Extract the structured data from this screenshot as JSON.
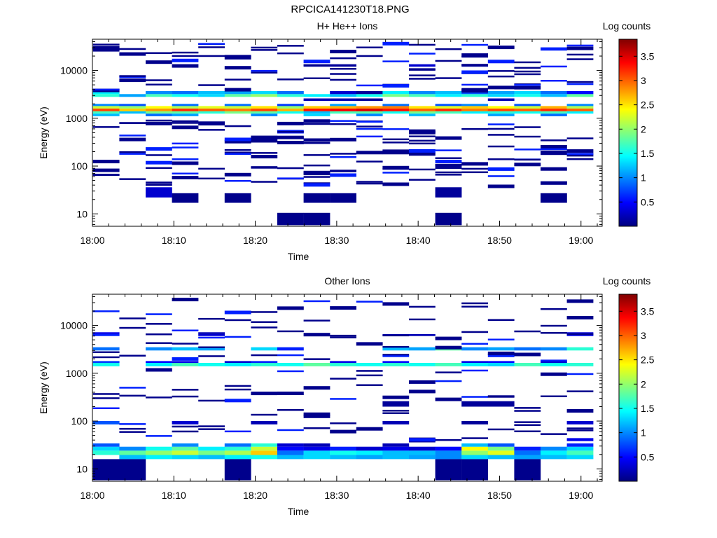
{
  "figure": {
    "title": "RPCICA141230T18.PNG"
  },
  "colors": {
    "colormap": [
      "#00007f",
      "#0000ff",
      "#007fff",
      "#00ffff",
      "#7fff7f",
      "#ffff00",
      "#ff7f00",
      "#ff0000",
      "#7f0000"
    ]
  },
  "chart_data": [
    {
      "type": "heatmap",
      "title": "H+ He++ Ions",
      "xlabel": "Time",
      "ylabel": "Energy (eV)",
      "y_scale": "log",
      "ylim": [
        5.5,
        45000
      ],
      "xlim": [
        "18:00",
        "19:02.6"
      ],
      "x_ticks": [
        "18:00",
        "18:10",
        "18:20",
        "18:30",
        "18:40",
        "18:50",
        "19:00"
      ],
      "y_ticks": [
        10,
        100,
        1000,
        10000
      ],
      "y_tick_labels": [
        "10",
        "100",
        "1000",
        "10000"
      ],
      "colorbar": {
        "label": "Log counts",
        "min": 0,
        "max": 3.85,
        "ticks": [
          0.5,
          1,
          1.5,
          2,
          2.5,
          3,
          3.5
        ],
        "tick_labels": [
          "0.5",
          "1",
          "1.5",
          "2",
          "2.5",
          "3",
          "3.5"
        ]
      },
      "time_bins": [
        "18:03",
        "18:06",
        "18:09",
        "18:12",
        "18:16",
        "18:19",
        "18:22",
        "18:26",
        "18:29",
        "18:32",
        "18:35",
        "18:38",
        "18:42",
        "18:45",
        "18:48",
        "18:51",
        "18:54",
        "18:58",
        "19:01"
      ],
      "cells": [
        [
          0,
          10,
          1.7
        ],
        [
          1,
          10,
          1.2
        ],
        [
          2,
          10,
          1.9
        ],
        [
          3,
          10,
          1.8
        ],
        [
          4,
          10,
          1.6
        ],
        [
          5,
          10,
          1.9
        ],
        [
          6,
          10,
          1.8
        ],
        [
          7,
          10,
          1.5
        ],
        [
          8,
          10,
          1.2
        ],
        [
          9,
          10,
          1.7
        ],
        [
          10,
          10,
          1.8
        ],
        [
          11,
          10,
          1.5
        ],
        [
          12,
          10,
          1.9
        ],
        [
          13,
          10,
          1.7
        ],
        [
          14,
          10,
          1.4
        ],
        [
          15,
          10,
          1.6
        ],
        [
          16,
          10,
          1.5
        ],
        [
          17,
          10,
          1.7
        ],
        [
          18,
          10,
          1.4
        ],
        [
          0,
          11,
          3.1
        ],
        [
          1,
          11,
          2.6
        ],
        [
          2,
          11,
          2.8
        ],
        [
          3,
          11,
          3.2
        ],
        [
          4,
          11,
          3.0
        ],
        [
          5,
          11,
          2.9
        ],
        [
          6,
          11,
          3.1
        ],
        [
          7,
          11,
          2.7
        ],
        [
          8,
          11,
          3.3
        ],
        [
          9,
          11,
          3.4
        ],
        [
          10,
          11,
          3.5
        ],
        [
          11,
          11,
          3.3
        ],
        [
          12,
          11,
          3.0
        ],
        [
          13,
          11,
          3.2
        ],
        [
          14,
          11,
          2.9
        ],
        [
          15,
          11,
          3.1
        ],
        [
          16,
          11,
          3.0
        ],
        [
          17,
          11,
          3.2
        ],
        [
          18,
          11,
          3.0
        ],
        [
          0,
          12,
          2.2
        ],
        [
          1,
          12,
          2.0
        ],
        [
          2,
          12,
          2.4
        ],
        [
          3,
          12,
          2.1
        ],
        [
          4,
          12,
          2.3
        ],
        [
          5,
          12,
          2.2
        ],
        [
          6,
          12,
          2.5
        ],
        [
          7,
          12,
          2.0
        ],
        [
          8,
          12,
          2.6
        ],
        [
          9,
          12,
          2.7
        ],
        [
          10,
          12,
          2.8
        ],
        [
          11,
          12,
          2.9
        ],
        [
          12,
          12,
          2.5
        ],
        [
          13,
          12,
          2.3
        ],
        [
          14,
          12,
          2.6
        ],
        [
          15,
          12,
          2.4
        ],
        [
          16,
          12,
          2.2
        ],
        [
          17,
          12,
          2.7
        ],
        [
          18,
          12,
          2.1
        ],
        [
          0,
          9,
          1.2
        ],
        [
          2,
          9,
          0.9
        ],
        [
          3,
          9,
          1.1
        ],
        [
          6,
          9,
          1.0
        ],
        [
          8,
          9,
          1.3
        ],
        [
          10,
          9,
          1.0
        ],
        [
          12,
          9,
          1.2
        ],
        [
          15,
          9,
          1.1
        ],
        [
          17,
          9,
          0.9
        ],
        [
          0,
          13,
          1.0
        ],
        [
          1,
          13,
          0.8
        ],
        [
          3,
          13,
          0.9
        ],
        [
          5,
          13,
          0.9
        ],
        [
          7,
          13,
          0.7
        ],
        [
          9,
          13,
          1.1
        ],
        [
          11,
          13,
          0.9
        ],
        [
          13,
          13,
          0.8
        ],
        [
          14,
          13,
          1.0
        ],
        [
          16,
          13,
          0.8
        ],
        [
          18,
          13,
          1.0
        ],
        [
          0,
          15,
          1.6
        ],
        [
          1,
          15,
          1.1
        ],
        [
          2,
          15,
          1.7
        ],
        [
          3,
          15,
          1.5
        ],
        [
          4,
          15,
          1.3
        ],
        [
          5,
          15,
          1.8
        ],
        [
          6,
          15,
          2.0
        ],
        [
          7,
          15,
          1.6
        ],
        [
          8,
          15,
          1.4
        ],
        [
          9,
          15,
          1.2
        ],
        [
          10,
          15,
          1.5
        ],
        [
          11,
          15,
          1.9
        ],
        [
          12,
          15,
          1.7
        ],
        [
          13,
          15,
          1.4
        ],
        [
          14,
          15,
          1.6
        ],
        [
          15,
          15,
          1.3
        ],
        [
          16,
          15,
          1.5
        ],
        [
          17,
          15,
          1.2
        ],
        [
          18,
          15,
          1.8
        ],
        [
          0,
          16,
          1.4
        ],
        [
          2,
          16,
          1.0
        ],
        [
          3,
          16,
          0.9
        ],
        [
          4,
          16,
          1.2
        ],
        [
          5,
          16,
          1.1
        ],
        [
          6,
          16,
          1.3
        ],
        [
          7,
          16,
          0.9
        ],
        [
          9,
          16,
          0.3
        ],
        [
          10,
          16,
          0.1
        ],
        [
          11,
          16,
          1.4
        ],
        [
          12,
          16,
          1.0
        ],
        [
          13,
          16,
          1.2
        ],
        [
          14,
          16,
          0.8
        ],
        [
          15,
          16,
          1.1
        ],
        [
          16,
          16,
          1.3
        ],
        [
          17,
          16,
          0.9
        ],
        [
          18,
          16,
          0.5
        ],
        [
          8,
          14,
          0.2
        ],
        [
          9,
          14,
          0.2
        ],
        [
          10,
          14,
          0.1
        ],
        [
          15,
          14,
          0.2
        ],
        [
          8,
          17,
          0.1
        ],
        [
          9,
          17,
          0.1
        ],
        [
          12,
          17,
          0.3
        ],
        [
          14,
          17,
          0.1
        ],
        [
          7,
          0,
          0.05
        ],
        [
          8,
          0,
          0.05
        ],
        [
          13,
          0,
          0.05
        ],
        [
          8,
          1,
          0.05
        ],
        [
          17,
          1,
          0.05
        ],
        [
          3,
          1,
          0.05
        ],
        [
          5,
          1,
          0.05
        ],
        [
          9,
          1,
          0.05
        ],
        [
          2,
          2,
          0.3
        ],
        [
          13,
          2,
          0.1
        ]
      ],
      "noise_seed": 7
    },
    {
      "type": "heatmap",
      "title": "Other Ions",
      "xlabel": "Time",
      "ylabel": "Energy (eV)",
      "y_scale": "log",
      "ylim": [
        5.5,
        45000
      ],
      "xlim": [
        "18:00",
        "19:02.6"
      ],
      "x_ticks": [
        "18:00",
        "18:10",
        "18:20",
        "18:30",
        "18:40",
        "18:50",
        "19:00"
      ],
      "y_ticks": [
        10,
        100,
        1000,
        10000
      ],
      "y_tick_labels": [
        "10",
        "100",
        "1000",
        "10000"
      ],
      "colorbar": {
        "label": "Log counts",
        "min": 0,
        "max": 3.85,
        "ticks": [
          0.5,
          1,
          1.5,
          2,
          2.5,
          3,
          3.5
        ],
        "tick_labels": [
          "0.5",
          "1",
          "1.5",
          "2",
          "2.5",
          "3",
          "3.5"
        ]
      },
      "time_bins": [
        "18:03",
        "18:06",
        "18:09",
        "18:12",
        "18:16",
        "18:19",
        "18:22",
        "18:26",
        "18:29",
        "18:32",
        "18:35",
        "18:38",
        "18:42",
        "18:45",
        "18:48",
        "18:51",
        "18:54",
        "18:58",
        "19:01"
      ],
      "cells": [
        [
          0,
          2,
          1.6
        ],
        [
          1,
          2,
          1.8
        ],
        [
          2,
          2,
          2.0
        ],
        [
          3,
          2,
          2.2
        ],
        [
          4,
          2,
          1.9
        ],
        [
          5,
          2,
          2.1
        ],
        [
          6,
          2,
          2.6
        ],
        [
          7,
          2,
          0.9
        ],
        [
          8,
          2,
          1.3
        ],
        [
          9,
          2,
          1.5
        ],
        [
          10,
          2,
          1.4
        ],
        [
          11,
          2,
          1.2
        ],
        [
          12,
          2,
          1.2
        ],
        [
          13,
          2,
          1.0
        ],
        [
          14,
          2,
          2.0
        ],
        [
          15,
          2,
          2.3
        ],
        [
          16,
          2,
          0.9
        ],
        [
          17,
          2,
          1.4
        ],
        [
          18,
          2,
          1.7
        ],
        [
          0,
          3,
          1.3
        ],
        [
          1,
          3,
          1.0
        ],
        [
          2,
          3,
          1.5
        ],
        [
          3,
          3,
          1.8
        ],
        [
          4,
          3,
          1.4
        ],
        [
          5,
          3,
          1.6
        ],
        [
          6,
          3,
          2.2
        ],
        [
          7,
          3,
          0.5
        ],
        [
          8,
          3,
          0.4
        ],
        [
          9,
          3,
          0.6
        ],
        [
          10,
          3,
          0.3
        ],
        [
          11,
          3,
          0.4
        ],
        [
          12,
          3,
          0.3
        ],
        [
          13,
          3,
          0.5
        ],
        [
          14,
          3,
          2.4
        ],
        [
          15,
          3,
          1.9
        ],
        [
          16,
          3,
          0.6
        ],
        [
          17,
          3,
          1.0
        ],
        [
          18,
          3,
          1.3
        ],
        [
          0,
          4,
          0.8
        ],
        [
          3,
          4,
          1.0
        ],
        [
          5,
          4,
          0.9
        ],
        [
          6,
          4,
          1.6
        ],
        [
          7,
          4,
          0.3
        ],
        [
          8,
          4,
          0.2
        ],
        [
          11,
          4,
          0.2
        ],
        [
          14,
          4,
          1.2
        ],
        [
          15,
          4,
          0.8
        ],
        [
          18,
          4,
          0.6
        ],
        [
          1,
          1,
          1.2
        ],
        [
          2,
          1,
          1.4
        ],
        [
          3,
          1,
          1.3
        ],
        [
          4,
          1,
          1.2
        ],
        [
          5,
          1,
          1.4
        ],
        [
          6,
          1,
          1.5
        ],
        [
          7,
          1,
          1.2
        ],
        [
          8,
          1,
          1.3
        ],
        [
          9,
          1,
          1.2
        ],
        [
          10,
          1,
          1.1
        ],
        [
          11,
          1,
          1.2
        ],
        [
          12,
          1,
          1.1
        ],
        [
          13,
          1,
          1.0
        ],
        [
          14,
          1,
          1.3
        ],
        [
          15,
          1,
          1.2
        ],
        [
          16,
          1,
          1.1
        ],
        [
          17,
          1,
          1.2
        ],
        [
          18,
          1,
          1.3
        ],
        [
          0,
          0,
          0.05
        ],
        [
          1,
          0,
          0.05
        ],
        [
          5,
          0,
          0.05
        ],
        [
          13,
          0,
          0.05
        ],
        [
          14,
          0,
          0.05
        ],
        [
          16,
          0,
          0.05
        ],
        [
          0,
          11,
          1.5
        ],
        [
          2,
          11,
          1.4
        ],
        [
          3,
          11,
          1.7
        ],
        [
          4,
          11,
          1.5
        ],
        [
          5,
          11,
          1.4
        ],
        [
          6,
          11,
          1.6
        ],
        [
          7,
          11,
          1.5
        ],
        [
          8,
          11,
          1.8
        ],
        [
          9,
          11,
          1.6
        ],
        [
          10,
          11,
          1.5
        ],
        [
          11,
          11,
          1.6
        ],
        [
          12,
          11,
          1.5
        ],
        [
          13,
          11,
          1.7
        ],
        [
          14,
          11,
          1.4
        ],
        [
          15,
          11,
          1.3
        ],
        [
          16,
          11,
          1.7
        ],
        [
          17,
          11,
          1.5
        ],
        [
          18,
          11,
          1.6
        ],
        [
          0,
          12,
          0.7
        ],
        [
          2,
          12,
          0.5
        ],
        [
          3,
          12,
          0.4
        ],
        [
          5,
          12,
          0.3
        ],
        [
          6,
          12,
          0.6
        ],
        [
          9,
          12,
          0.4
        ],
        [
          11,
          12,
          0.5
        ],
        [
          14,
          12,
          0.4
        ],
        [
          15,
          12,
          0.5
        ],
        [
          17,
          12,
          0.3
        ],
        [
          0,
          13,
          0.9
        ],
        [
          2,
          13,
          1.0
        ],
        [
          3,
          13,
          1.2
        ],
        [
          4,
          13,
          1.1
        ],
        [
          6,
          13,
          1.3
        ],
        [
          7,
          13,
          0.6
        ],
        [
          11,
          13,
          1.2
        ],
        [
          12,
          13,
          1.1
        ],
        [
          13,
          13,
          1.8
        ],
        [
          14,
          13,
          1.0
        ],
        [
          15,
          13,
          1.1
        ],
        [
          16,
          13,
          0.9
        ],
        [
          17,
          13,
          1.0
        ],
        [
          18,
          13,
          1.6
        ],
        [
          0,
          14,
          0.6
        ],
        [
          4,
          14,
          0.3
        ],
        [
          11,
          14,
          0.2
        ],
        [
          12,
          14,
          0.2
        ],
        [
          18,
          14,
          0.5
        ],
        [
          0,
          15,
          0.4
        ],
        [
          4,
          15,
          0.2
        ],
        [
          18,
          15,
          0.3
        ],
        [
          0,
          7,
          0.8
        ],
        [
          3,
          7,
          0.3
        ],
        [
          6,
          7,
          0.2
        ],
        [
          11,
          7,
          0.2
        ],
        [
          14,
          7,
          0.1
        ],
        [
          18,
          7,
          0.3
        ],
        [
          18,
          6,
          0.4
        ],
        [
          11,
          8,
          0.1
        ],
        [
          14,
          8,
          0.1
        ],
        [
          15,
          8,
          0.1
        ]
      ],
      "noise_seed": 11
    }
  ]
}
